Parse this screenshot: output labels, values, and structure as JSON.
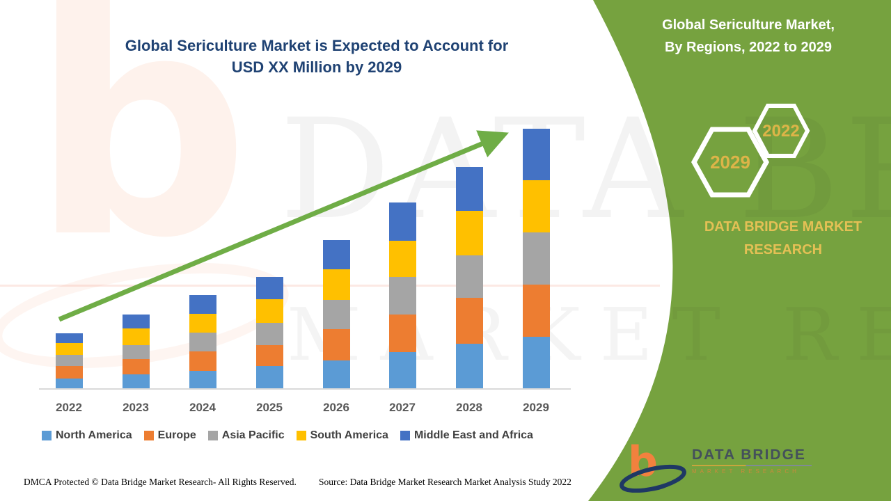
{
  "title": {
    "line1": "Global Sericulture Market is Expected to Account for",
    "line2": "USD XX Million by 2029",
    "color": "#1F4273"
  },
  "chart_data": {
    "type": "bar",
    "stacked": true,
    "title": "Global Sericulture Market, By Regions, 2022 to 2029",
    "categories": [
      "2022",
      "2023",
      "2024",
      "2025",
      "2026",
      "2027",
      "2028",
      "2029"
    ],
    "series": [
      {
        "name": "North America",
        "color": "#5B9BD5",
        "values": [
          15,
          21,
          26,
          33,
          41,
          53,
          65,
          75
        ]
      },
      {
        "name": "Europe",
        "color": "#ED7D31",
        "values": [
          18,
          22,
          28,
          30,
          45,
          54,
          66,
          75
        ]
      },
      {
        "name": "Asia Pacific",
        "color": "#A5A5A5",
        "values": [
          16,
          20,
          27,
          32,
          42,
          54,
          61,
          75
        ]
      },
      {
        "name": "South America",
        "color": "#FFC000",
        "values": [
          17,
          24,
          27,
          34,
          44,
          52,
          64,
          75
        ]
      },
      {
        "name": "Middle East and Africa",
        "color": "#4472C4",
        "values": [
          14,
          20,
          27,
          32,
          42,
          55,
          63,
          74
        ]
      }
    ],
    "stack_order_bottom_to_top": [
      "North America",
      "Europe",
      "Asia Pacific",
      "South America",
      "Middle East and Africa"
    ],
    "units": "relative height; market sized as USD XX Million (values not labeled in figure)",
    "xlabel": "",
    "ylabel": "",
    "y_axis_visible": false,
    "grid": false,
    "legend_position": "bottom",
    "annotations": [
      "green upward trend arrow spanning 2022 to 2029"
    ]
  },
  "side_panel": {
    "title_line1": "Global Sericulture Market,",
    "title_line2": "By Regions, 2022 to 2029",
    "hexagons": [
      {
        "label": "2029"
      },
      {
        "label": "2022"
      }
    ],
    "brand_line1": "DATA BRIDGE MARKET",
    "brand_line2": "RESEARCH",
    "bg_color": "#76A23F",
    "gold_color": "#DDB448",
    "arrow_color": "#6FAD46"
  },
  "logo": {
    "title": "DATA BRIDGE",
    "subtitle": "MARKET RESEARCH"
  },
  "footer": {
    "dmca": "DMCA Protected © Data Bridge Market Research- All Rights Reserved.",
    "source": "Source: Data Bridge Market Research Market Analysis Study 2022"
  },
  "watermark": {
    "glyph": "b",
    "line1": "DATA BRIDGE",
    "line2": "MARKET RESEARCH"
  }
}
